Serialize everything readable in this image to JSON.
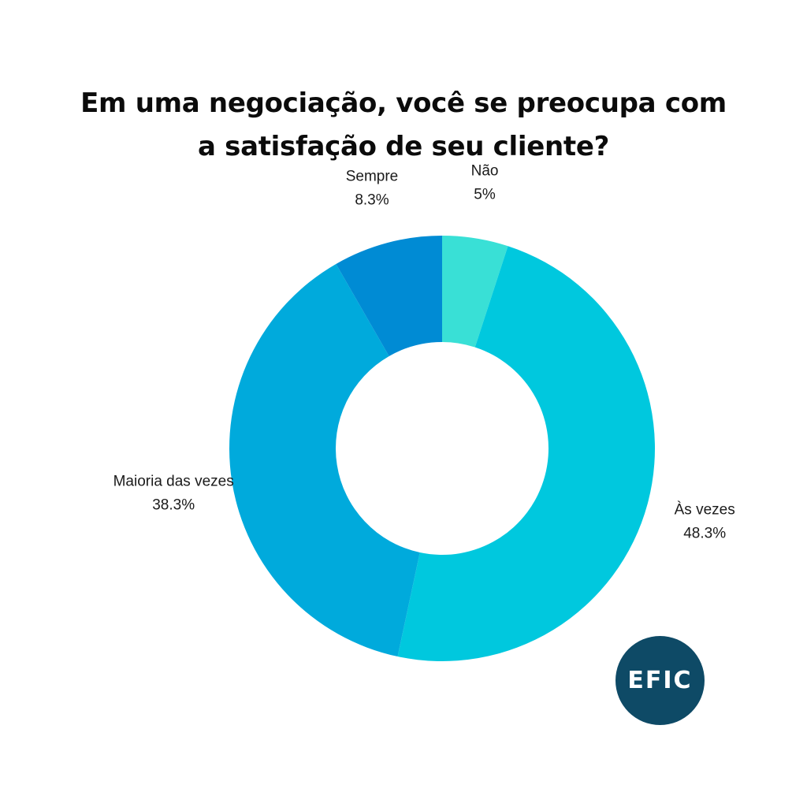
{
  "chart_data": {
    "type": "pie",
    "title_lines": [
      "Em uma negociação, você se preocupa com",
      "a satisfação de seu cliente?"
    ],
    "slices": [
      {
        "label": "Não",
        "value": 5,
        "value_label": "5%",
        "color": "#39e0d6"
      },
      {
        "label": "Às vezes",
        "value": 48.3,
        "value_label": "48.3%",
        "color": "#00c8de"
      },
      {
        "label": "Maioria das vezes",
        "value": 38.3,
        "value_label": "38.3%",
        "color": "#00aadc"
      },
      {
        "label": "Sempre",
        "value": 8.3,
        "value_label": "8.3%",
        "color": "#008bd4"
      }
    ],
    "donut": true,
    "start_angle": "top",
    "direction": "clockwise",
    "legend": "none"
  },
  "logo": {
    "text": "EFIC",
    "color": "#0e4a66"
  }
}
